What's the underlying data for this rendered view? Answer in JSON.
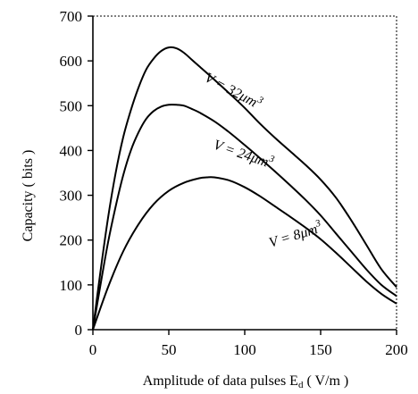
{
  "chart_data": {
    "type": "line",
    "title": "",
    "xlabel": "Amplitude of data pulses E",
    "xlabel_sub": "d",
    "xlabel_unit": " ( V/m )",
    "ylabel": "Capacity ( bits )",
    "xlim": [
      0,
      200
    ],
    "ylim": [
      0,
      700
    ],
    "xticks": [
      0,
      50,
      100,
      150,
      200
    ],
    "yticks": [
      0,
      100,
      200,
      300,
      400,
      500,
      600,
      700
    ],
    "grid": false,
    "legend": "none",
    "series": [
      {
        "name": "V = 32μm³",
        "label_main": "V = 32μm",
        "label_sup": "3",
        "x": [
          0,
          5,
          10,
          15,
          20,
          25,
          30,
          35,
          40,
          45,
          50,
          55,
          60,
          65,
          70,
          80,
          90,
          100,
          110,
          120,
          130,
          140,
          150,
          160,
          170,
          180,
          190,
          200
        ],
        "y": [
          0,
          130,
          250,
          350,
          430,
          490,
          540,
          580,
          605,
          622,
          630,
          628,
          618,
          603,
          588,
          558,
          527,
          495,
          460,
          428,
          398,
          368,
          335,
          295,
          245,
          190,
          135,
          95
        ]
      },
      {
        "name": "V = 24μm³",
        "label_main": "V = 24μm",
        "label_sup": "3",
        "x": [
          0,
          5,
          10,
          15,
          20,
          25,
          30,
          35,
          40,
          45,
          50,
          55,
          60,
          65,
          70,
          80,
          90,
          100,
          110,
          120,
          130,
          140,
          150,
          160,
          170,
          180,
          190,
          200
        ],
        "y": [
          0,
          100,
          195,
          275,
          345,
          400,
          440,
          470,
          488,
          498,
          502,
          502,
          500,
          493,
          485,
          465,
          440,
          412,
          383,
          353,
          322,
          290,
          255,
          215,
          175,
          135,
          100,
          75
        ]
      },
      {
        "name": "V = 8μm³",
        "label_main": "V = 8μm",
        "label_sup": "3",
        "x": [
          0,
          10,
          20,
          30,
          40,
          50,
          60,
          70,
          75,
          80,
          90,
          100,
          110,
          120,
          130,
          140,
          150,
          160,
          170,
          180,
          190,
          200
        ],
        "y": [
          0,
          95,
          175,
          235,
          280,
          310,
          328,
          338,
          340,
          340,
          333,
          318,
          298,
          275,
          252,
          228,
          202,
          172,
          140,
          108,
          80,
          58
        ]
      }
    ]
  }
}
